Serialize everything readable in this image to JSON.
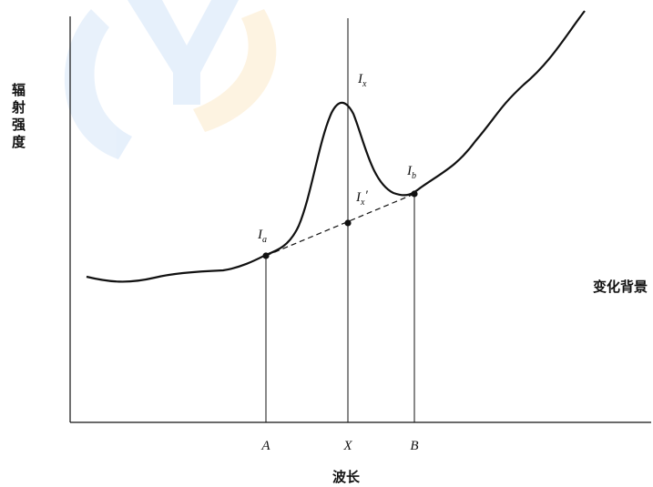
{
  "axes": {
    "y_label_chars": [
      "辐",
      "射",
      "强",
      "度"
    ],
    "x_label": "波长"
  },
  "ticks": {
    "a": "A",
    "x": "X",
    "b": "B"
  },
  "points": {
    "ia": {
      "main": "I",
      "sub": "a"
    },
    "ib": {
      "main": "I",
      "sub": "b"
    },
    "ix": {
      "main": "I",
      "sub": "x"
    },
    "ix_prime": {
      "main": "I",
      "sub": "x",
      "prime": "′"
    }
  },
  "background_label": "变化背景",
  "colors": {
    "line": "#111111",
    "watermark_blue": "#4a90e2",
    "watermark_orange": "#f5a623"
  }
}
